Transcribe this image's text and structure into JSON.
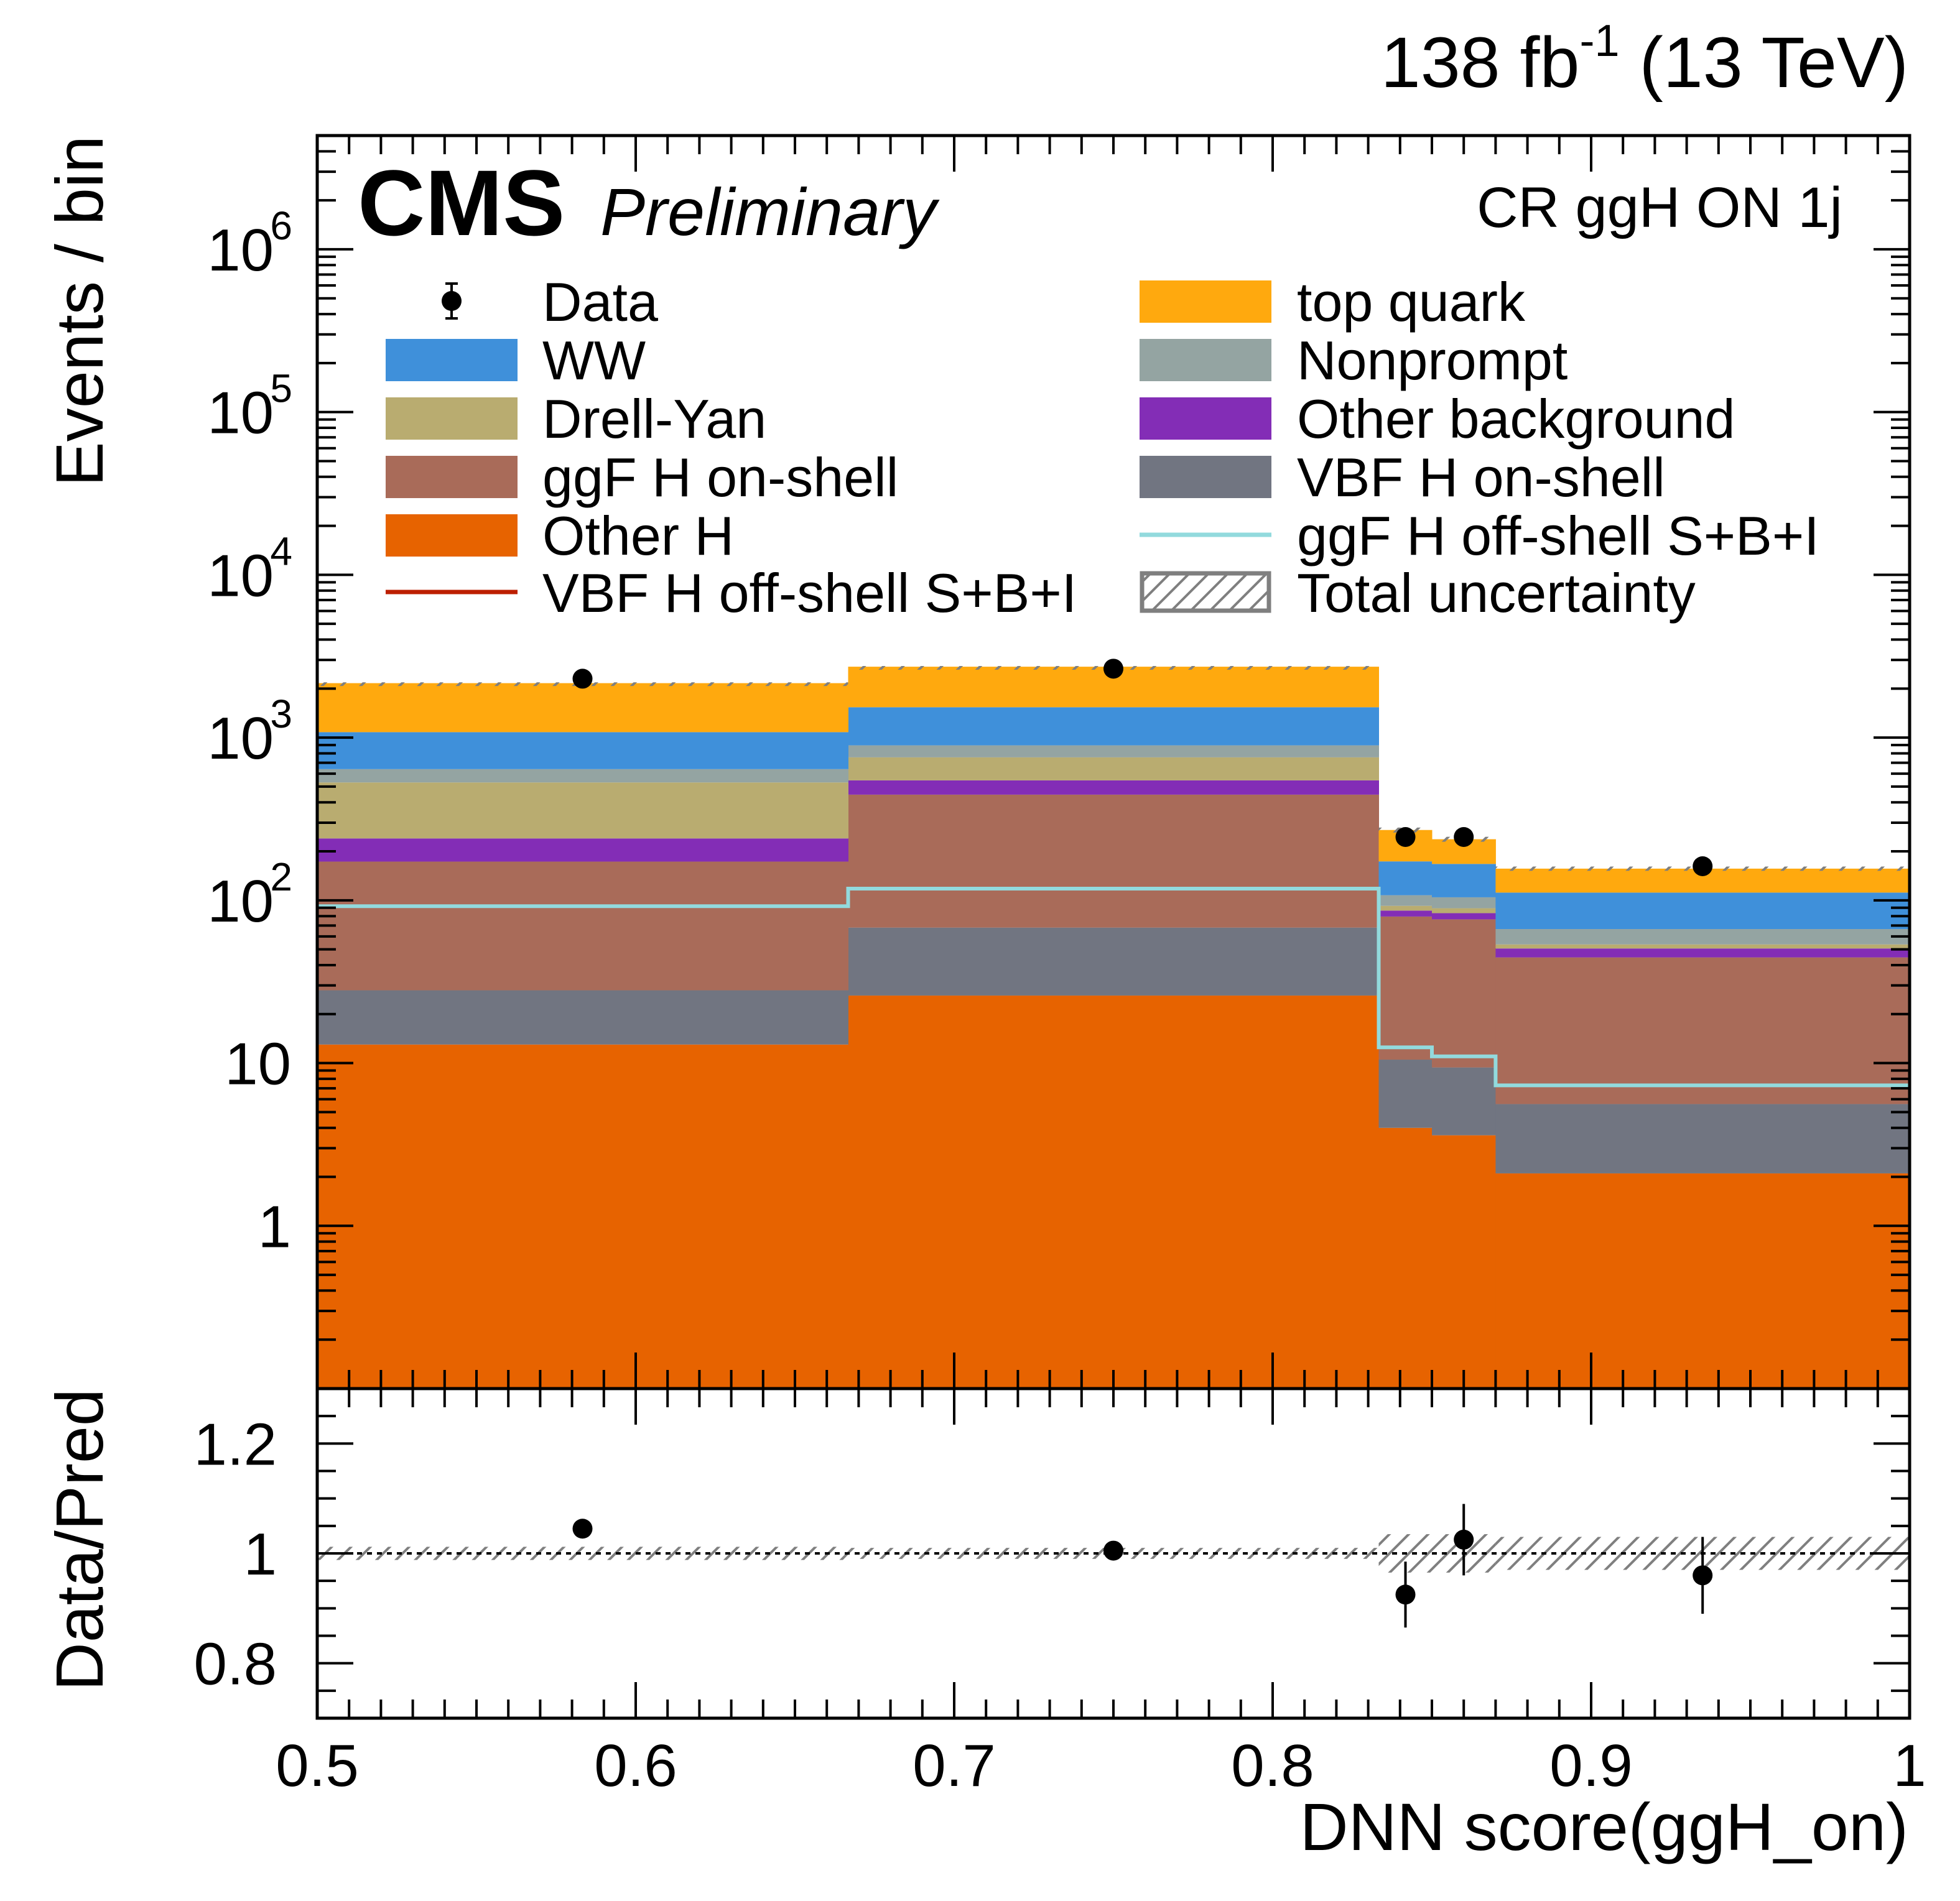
{
  "header": {
    "lumi": "138 fb",
    "lumi_exp": "-1",
    "energy": "(13 TeV)",
    "cms": "CMS",
    "preliminary": "Preliminary",
    "region": "CR ggH ON 1j"
  },
  "chart_data": [
    {
      "type": "stacked-histogram",
      "title": "CR ggH ON 1j",
      "ylabel": "Events / bin",
      "xlabel": "DNN score(ggH_on)",
      "yscale": "log",
      "xlim": [
        0.5,
        1.0
      ],
      "ylim": [
        0.1,
        5000000
      ],
      "bin_edges": [
        0.5,
        0.6667,
        0.8333,
        0.85,
        0.87,
        1.0
      ],
      "y_ticks": [
        {
          "v": 1,
          "label": "1"
        },
        {
          "v": 10,
          "label": "10"
        },
        {
          "v": 100,
          "label": "10",
          "exp": "2"
        },
        {
          "v": 1000,
          "label": "10",
          "exp": "3"
        },
        {
          "v": 10000,
          "label": "10",
          "exp": "4"
        },
        {
          "v": 100000,
          "label": "10",
          "exp": "5"
        },
        {
          "v": 1000000,
          "label": "10",
          "exp": "6"
        }
      ],
      "stack_order_bottom_to_top": [
        "Other H",
        "VBF H on-shell",
        "ggF H on-shell",
        "Other background",
        "Drell-Yan",
        "Nonprompt",
        "WW",
        "top quark"
      ],
      "series": [
        {
          "name": "Other H",
          "color": "#e76300",
          "values": [
            13,
            26,
            4.0,
            3.6,
            2.1
          ]
        },
        {
          "name": "VBF H on-shell",
          "color": "#717581",
          "values": [
            15,
            42,
            6.5,
            5.8,
            3.5
          ]
        },
        {
          "name": "ggF H on-shell",
          "color": "#a96b59",
          "values": [
            145,
            378,
            69,
            67,
            39
          ]
        },
        {
          "name": "Other background",
          "color": "#832db6",
          "values": [
            67,
            100,
            7,
            7,
            6
          ]
        },
        {
          "name": "Drell-Yan",
          "color": "#b9ac70",
          "values": [
            290,
            210,
            6,
            6,
            3
          ]
        },
        {
          "name": "Nonprompt",
          "color": "#94a4a2",
          "values": [
            110,
            140,
            15,
            15,
            13
          ]
        },
        {
          "name": "WW",
          "color": "#3f90da",
          "values": [
            440,
            640,
            66,
            63,
            45
          ]
        },
        {
          "name": "top quark",
          "color": "#ffa90e",
          "values": [
            1080,
            1190,
            97,
            70,
            45
          ]
        }
      ],
      "overlays": [
        {
          "name": "ggF H off-shell S+B+I",
          "color": "#92dadd",
          "style": "line",
          "values": [
            92,
            118,
            12.5,
            11,
            7.3
          ]
        },
        {
          "name": "VBF H off-shell S+B+I",
          "color": "#bd1f01",
          "style": "line",
          "values": []
        }
      ],
      "data": {
        "name": "Data",
        "x": [
          0.5833,
          0.75,
          0.8417,
          0.86,
          0.935
        ],
        "y": [
          2300,
          2650,
          245,
          245,
          162
        ],
        "yerr": [
          48,
          51,
          16,
          16,
          13
        ]
      },
      "total_uncertainty": {
        "name": "Total uncertainty",
        "rel": [
          0.012,
          0.01,
          0.035,
          0.035,
          0.03
        ]
      },
      "legend": [
        {
          "label": "Data",
          "kind": "marker",
          "color": "#000000"
        },
        {
          "label": "top quark",
          "kind": "box",
          "color": "#ffa90e"
        },
        {
          "label": "WW",
          "kind": "box",
          "color": "#3f90da"
        },
        {
          "label": "Nonprompt",
          "kind": "box",
          "color": "#94a4a2"
        },
        {
          "label": "Drell-Yan",
          "kind": "box",
          "color": "#b9ac70"
        },
        {
          "label": "Other background",
          "kind": "box",
          "color": "#832db6"
        },
        {
          "label": "ggF H on-shell",
          "kind": "box",
          "color": "#a96b59"
        },
        {
          "label": "VBF H on-shell",
          "kind": "box",
          "color": "#717581"
        },
        {
          "label": "Other H",
          "kind": "box",
          "color": "#e76300"
        },
        {
          "label": "ggF H off-shell S+B+I",
          "kind": "line",
          "color": "#92dadd"
        },
        {
          "label": "VBF H off-shell S+B+I",
          "kind": "line",
          "color": "#bd1f01"
        },
        {
          "label": "Total uncertainty",
          "kind": "hatch",
          "color": "#7f7f7f"
        }
      ],
      "legend_placement": "top, two columns"
    },
    {
      "type": "ratio",
      "ylabel": "Data/Pred",
      "xlabel": "DNN score(ggH_on)",
      "xlim": [
        0.5,
        1.0
      ],
      "ylim": [
        0.7,
        1.3
      ],
      "y_ticks": [
        {
          "v": 0.8,
          "label": "0.8"
        },
        {
          "v": 1.0,
          "label": "1"
        },
        {
          "v": 1.2,
          "label": "1.2"
        }
      ],
      "x_ticks": [
        {
          "v": 0.5,
          "label": "0.5"
        },
        {
          "v": 0.6,
          "label": "0.6"
        },
        {
          "v": 0.7,
          "label": "0.7"
        },
        {
          "v": 0.8,
          "label": "0.8"
        },
        {
          "v": 0.9,
          "label": "0.9"
        },
        {
          "v": 1.0,
          "label": "1"
        }
      ],
      "points": {
        "x": [
          0.5833,
          0.75,
          0.8417,
          0.86,
          0.935
        ],
        "y": [
          1.045,
          1.005,
          0.925,
          1.025,
          0.96
        ],
        "yerr": [
          0.015,
          0.015,
          0.06,
          0.065,
          0.07
        ]
      },
      "reference_line": 1.0
    }
  ]
}
